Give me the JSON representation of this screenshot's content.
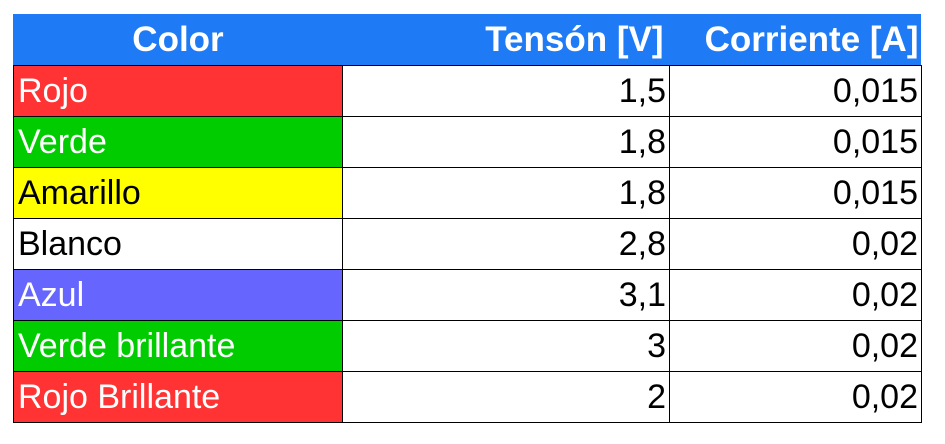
{
  "table": {
    "headers": {
      "color": "Color",
      "voltage": "Tensón [V]",
      "current": "Corriente [A]"
    },
    "rows": [
      {
        "color": "Rojo",
        "voltage": "1,5",
        "current": "0,015",
        "bg": "#ff3333",
        "fg": "#ffffff"
      },
      {
        "color": "Verde",
        "voltage": "1,8",
        "current": "0,015",
        "bg": "#00cc00",
        "fg": "#ffffff"
      },
      {
        "color": "Amarillo",
        "voltage": "1,8",
        "current": "0,015",
        "bg": "#ffff00",
        "fg": "#000000"
      },
      {
        "color": "Blanco",
        "voltage": "2,8",
        "current": "0,02",
        "bg": "#ffffff",
        "fg": "#000000"
      },
      {
        "color": "Azul",
        "voltage": "3,1",
        "current": "0,02",
        "bg": "#6666ff",
        "fg": "#ffffff"
      },
      {
        "color": "Verde brillante",
        "voltage": "3",
        "current": "0,02",
        "bg": "#00cc00",
        "fg": "#ffffff"
      },
      {
        "color": "Rojo Brillante",
        "voltage": "2",
        "current": "0,02",
        "bg": "#ff3333",
        "fg": "#ffffff"
      }
    ],
    "header_bg": "#1e7bf5",
    "header_fg": "#ffffff"
  }
}
